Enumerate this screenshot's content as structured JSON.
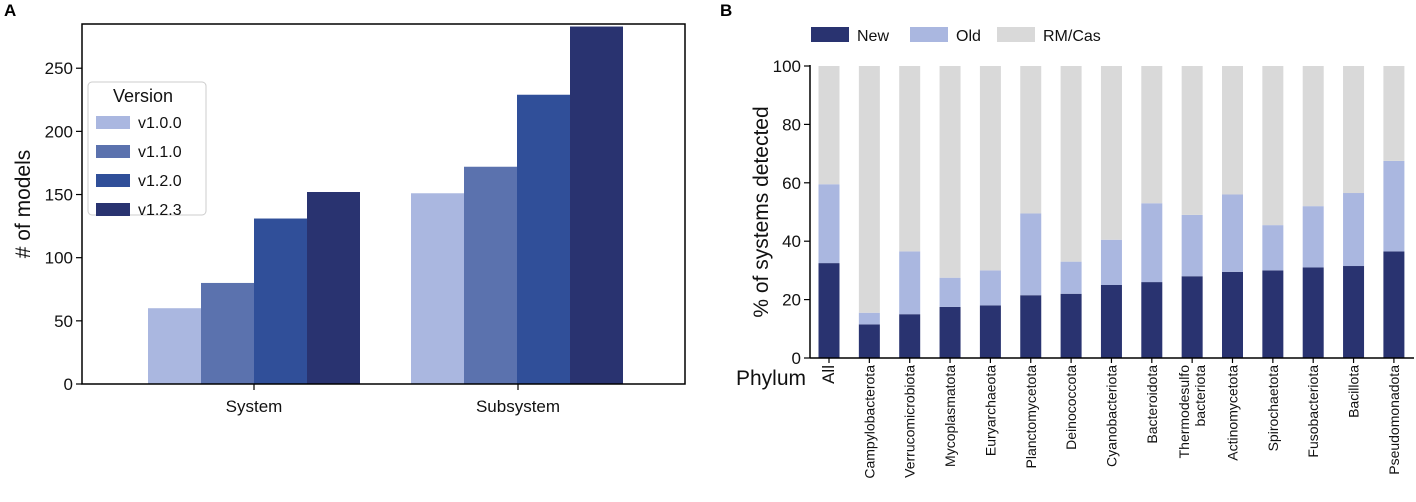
{
  "panels": {
    "a": "A",
    "b": "B"
  },
  "colors": {
    "v100": "#aab7e0",
    "v110": "#5b72ae",
    "v120": "#304f99",
    "v123": "#293370",
    "new": "#293370",
    "old": "#aab7e0",
    "rmcas": "#d9d9d9"
  },
  "chart_data": [
    {
      "type": "bar",
      "panel": "A",
      "categories": [
        "System",
        "Subsystem"
      ],
      "series": [
        {
          "name": "v1.0.0",
          "values": [
            60,
            151
          ]
        },
        {
          "name": "v1.1.0",
          "values": [
            80,
            172
          ]
        },
        {
          "name": "v1.2.0",
          "values": [
            131,
            229
          ]
        },
        {
          "name": "v1.2.3",
          "values": [
            152,
            283
          ]
        }
      ],
      "xlabel": "",
      "ylabel": "# of models",
      "ylim": [
        0,
        285
      ],
      "yticks": [
        0,
        50,
        100,
        150,
        200,
        250
      ],
      "legend_title": "Version",
      "legend_position": "upper-left",
      "grid": false
    },
    {
      "type": "bar",
      "stacked": true,
      "panel": "B",
      "categories": [
        "All",
        "Campylobacterota",
        "Verrucomicrobiota",
        "Mycoplasmatota",
        "Euryarchaeota",
        "Planctomycetota",
        "Deinococcota",
        "Cyanobacteriota",
        "Bacteroidota",
        "Thermodesulfo bacteriota",
        "Actinomycetota",
        "Spirochaetota",
        "Fusobacteriota",
        "Bacillota",
        "Pseudomonadota"
      ],
      "category_lines": [
        [
          "All"
        ],
        [
          "Campylobacterota"
        ],
        [
          "Verrucomicrobiota"
        ],
        [
          "Mycoplasmatota"
        ],
        [
          "Euryarchaeota"
        ],
        [
          "Planctomycetota"
        ],
        [
          "Deinococcota"
        ],
        [
          "Cyanobacteriota"
        ],
        [
          "Bacteroidota"
        ],
        [
          "Thermodesulfo",
          "bacteriota"
        ],
        [
          "Actinomycetota"
        ],
        [
          "Spirochaetota"
        ],
        [
          "Fusobacteriota"
        ],
        [
          "Bacillota"
        ],
        [
          "Pseudomonadota"
        ]
      ],
      "series": [
        {
          "name": "New",
          "values": [
            32.5,
            11.5,
            15,
            17.5,
            18,
            21.5,
            22,
            25,
            26,
            28,
            29.5,
            30,
            31,
            31.5,
            36.5
          ]
        },
        {
          "name": "Old",
          "values": [
            27,
            4,
            21.5,
            10,
            12,
            28,
            11,
            15.5,
            27,
            21,
            26.5,
            15.5,
            21,
            25,
            31
          ]
        },
        {
          "name": "RM/Cas",
          "values": [
            40.5,
            84.5,
            63.5,
            72.5,
            70,
            50.5,
            67,
            59.5,
            47,
            51,
            44,
            54.5,
            48,
            43.5,
            32.5
          ]
        }
      ],
      "xlabel": "Phylum",
      "ylabel": "% of systems detected",
      "ylim": [
        0,
        100
      ],
      "yticks": [
        0,
        20,
        40,
        60,
        80,
        100
      ],
      "legend_position": "top",
      "grid": false
    }
  ]
}
